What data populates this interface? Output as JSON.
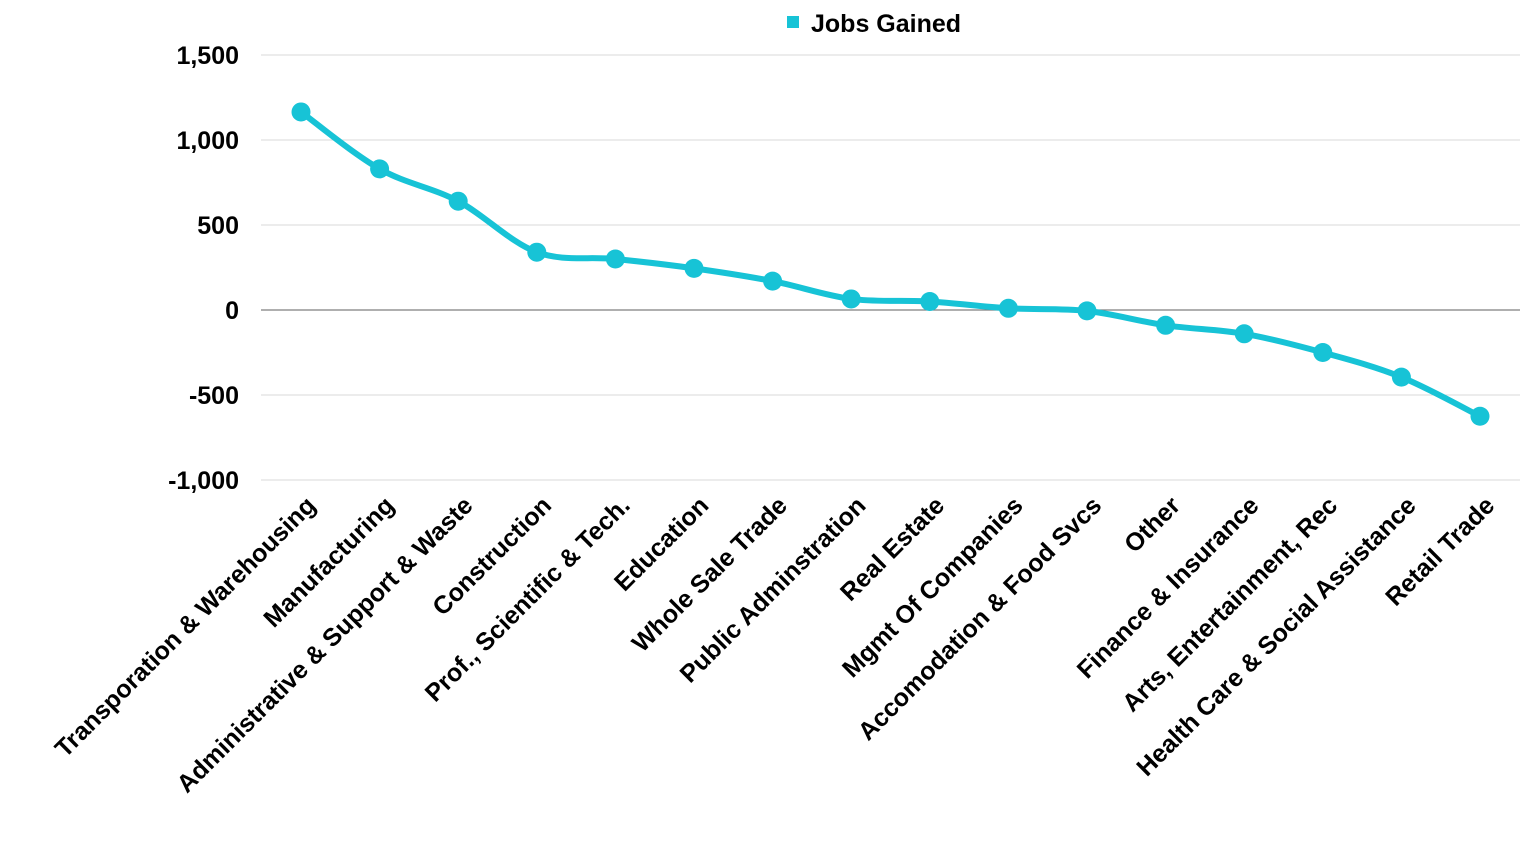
{
  "chart_data": {
    "type": "line",
    "title": "",
    "xlabel": "",
    "ylabel": "",
    "categories": [
      "Transporation & Warehousing",
      "Manufacturing",
      "Administrative & Support & Waste",
      "Construction",
      "Prof., Scientific & Tech.",
      "Education",
      "Whole Sale Trade",
      "Public Adminstration",
      "Real Estate",
      "Mgmt Of Companies",
      "Accomodation & Food Svcs",
      "Other",
      "Finance & Insurance",
      "Arts, Entertainment, Rec",
      "Health Care & Social Assistance",
      "Retail Trade"
    ],
    "series": [
      {
        "name": "Jobs Gained",
        "color": "#17C3D6",
        "values": [
          1165,
          830,
          640,
          340,
          300,
          245,
          170,
          65,
          50,
          10,
          -5,
          -90,
          -140,
          -250,
          -395,
          -625
        ]
      }
    ],
    "ylim": [
      -1000,
      1500
    ],
    "yticks": [
      1500,
      1000,
      500,
      0,
      -500,
      -1000
    ],
    "ytick_labels": [
      "1,500",
      "1,000",
      "500",
      "0",
      "-500",
      "-1,000"
    ],
    "grid": true,
    "legend": {
      "position": "top-center",
      "label": "Jobs Gained"
    }
  }
}
